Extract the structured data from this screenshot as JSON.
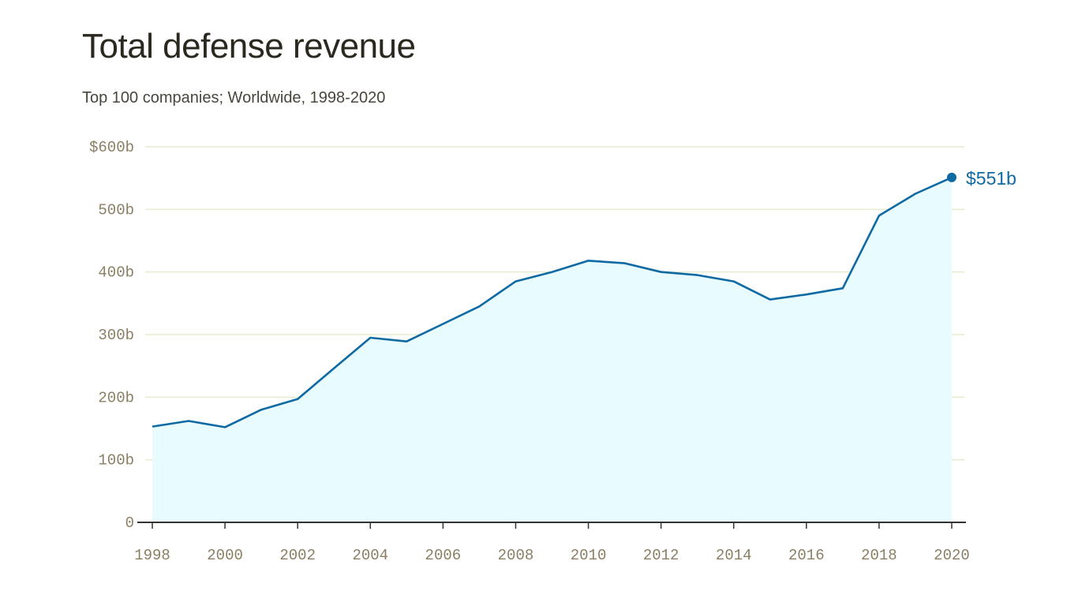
{
  "title": "Total defense revenue",
  "subtitle": "Top 100 companies; Worldwide, 1998-2020",
  "chart_data": {
    "type": "area",
    "title": "Total defense revenue",
    "subtitle": "Top 100 companies; Worldwide, 1998-2020",
    "xlabel": "",
    "ylabel": "",
    "x": [
      1998,
      1999,
      2000,
      2001,
      2002,
      2003,
      2004,
      2005,
      2006,
      2007,
      2008,
      2009,
      2010,
      2011,
      2012,
      2013,
      2014,
      2015,
      2016,
      2017,
      2018,
      2019,
      2020
    ],
    "y": [
      153,
      162,
      152,
      180,
      197,
      246,
      295,
      289,
      317,
      345,
      385,
      400,
      418,
      414,
      400,
      395,
      385,
      356,
      364,
      374,
      490,
      525,
      551
    ],
    "unit": "billion USD",
    "xlim": [
      1998,
      2020
    ],
    "ylim": [
      0,
      600
    ],
    "x_ticks": [
      "1998",
      "2000",
      "2002",
      "2004",
      "2006",
      "2008",
      "2010",
      "2012",
      "2014",
      "2016",
      "2018",
      "2020"
    ],
    "y_ticks": [
      {
        "value": 0,
        "label": "0"
      },
      {
        "value": 100,
        "label": "100b"
      },
      {
        "value": 200,
        "label": "200b"
      },
      {
        "value": 300,
        "label": "300b"
      },
      {
        "value": 400,
        "label": "400b"
      },
      {
        "value": 500,
        "label": "500b"
      },
      {
        "value": 600,
        "label": "$600b"
      }
    ],
    "end_label": "$551b",
    "grid": true,
    "legend": "none",
    "colors": {
      "line": "#0f6aa3",
      "area": "#e8fbfe",
      "grid": "#e5ebcf",
      "axis": "#333333",
      "tick_text": "#8a7f63"
    }
  }
}
